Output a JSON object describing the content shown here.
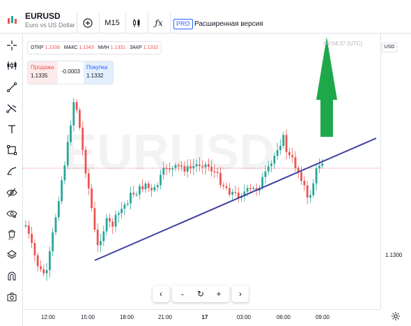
{
  "header": {
    "symbol": "EURUSD",
    "description": "Euro vs US Dollar",
    "timeframe": "M15",
    "pro_badge": "PRO",
    "extended_label": "Расширенная версия",
    "add_icon": "plus-circle-icon",
    "chart_type_icon": "candles-icon",
    "indicators_icon": "fx-icon"
  },
  "ohlc": {
    "open_label": "ОТКР",
    "open": "1.1338",
    "high_label": "МАКС",
    "high": "1.1343",
    "low_label": "МИН",
    "low": "1.1331",
    "close_label": "ЗАКР",
    "close": "1.1332"
  },
  "trade": {
    "sell_label": "Продажа",
    "sell_price": "1.1335",
    "spread": "-0.0003",
    "buy_label": "Покупка",
    "buy_price": "1.1332"
  },
  "chart": {
    "watermark": "EURUSD",
    "time_label": "09:04:37 (UTC)",
    "currency": "USD",
    "price_label": "1.1300",
    "up_color": "#26a69a",
    "down_color": "#ef5350",
    "trendline_color": "#3f3fa0",
    "arrow_color": "#1fa84a"
  },
  "time_axis": [
    "12:00",
    "15:00",
    "18:00",
    "21:00",
    "17",
    "03:00",
    "06:00",
    "09:00"
  ],
  "left_tools": [
    "crosshair-icon",
    "candles-tool-icon",
    "trendline-icon",
    "fib-icon",
    "text-icon",
    "rectangle-icon",
    "brush-icon",
    "eye-icon",
    "hide-eye-icon",
    "delete-all-icon",
    "layers-icon",
    "magnet-icon",
    "camera-icon"
  ],
  "nav": {
    "back": "‹",
    "zoom_out": "-",
    "reset": "↻",
    "zoom_in": "+",
    "forward": "›"
  }
}
